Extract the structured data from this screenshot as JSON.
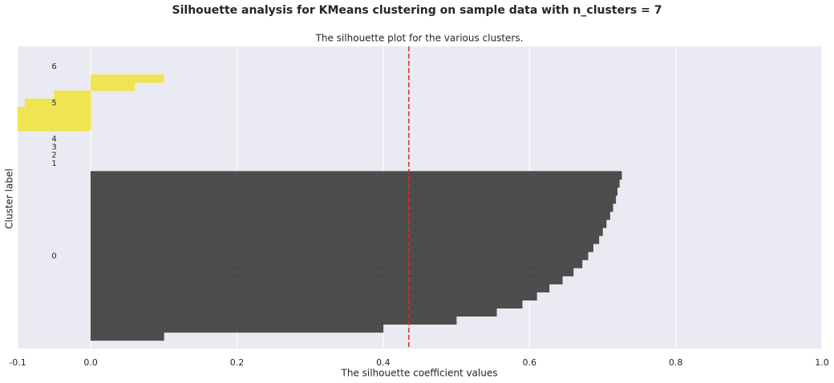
{
  "chart_data": {
    "type": "silhouette",
    "title": "Silhouette analysis for KMeans clustering on sample data with n_clusters = 7",
    "subtitle": "The silhouette plot for the various clusters.",
    "x_label": "The silhouette coefficient values",
    "y_label": "Cluster label",
    "xlim": [
      -0.1,
      1.0
    ],
    "xticks": [
      -0.1,
      {
        "value": 0,
        "label": "0.0"
      },
      0.2,
      0.4,
      0.6,
      0.8,
      {
        "value": 1,
        "label": "1.0"
      }
    ],
    "ylim": [
      0,
      37.5
    ],
    "grid": true,
    "silhouette_avg": 0.435,
    "avg_color": "#e8261f",
    "series": [
      {
        "name": "0",
        "color": "#444444",
        "values": [
          0.1,
          0.4,
          0.5,
          0.555,
          0.59,
          0.61,
          0.627,
          0.645,
          0.66,
          0.672,
          0.68,
          0.687,
          0.695,
          0.7,
          0.705,
          0.71,
          0.714,
          0.718,
          0.72,
          0.723,
          0.726
        ]
      },
      {
        "name": "1",
        "values": []
      },
      {
        "name": "2",
        "values": []
      },
      {
        "name": "3",
        "values": []
      },
      {
        "name": "4",
        "values": []
      },
      {
        "name": "5",
        "color": "#efe54a",
        "values": [
          -0.1,
          -0.1,
          -0.1,
          -0.09,
          -0.05,
          0.06,
          0.1
        ]
      },
      {
        "name": "6",
        "values": []
      }
    ]
  }
}
